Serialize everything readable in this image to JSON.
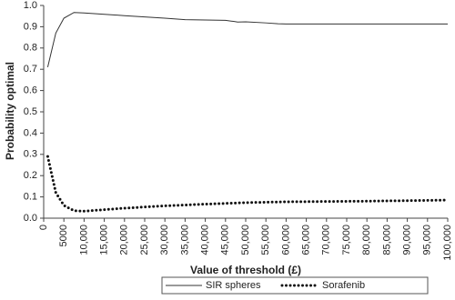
{
  "chart_data": {
    "type": "line",
    "x_label": "Value of threshold (£)",
    "y_label": "Probability optimal",
    "xlim": [
      0,
      100000
    ],
    "xticks": [
      0,
      5000,
      {
        "value": 10000,
        "label": "10,000"
      },
      {
        "value": 15000,
        "label": "15,000"
      },
      {
        "value": 20000,
        "label": "20,000"
      },
      {
        "value": 25000,
        "label": "25,000"
      },
      {
        "value": 30000,
        "label": "30,000"
      },
      {
        "value": 35000,
        "label": "35,000"
      },
      {
        "value": 40000,
        "label": "40,000"
      },
      {
        "value": 45000,
        "label": "45,000"
      },
      {
        "value": 50000,
        "label": "50,000"
      },
      {
        "value": 55000,
        "label": "55,000"
      },
      {
        "value": 60000,
        "label": "60,000"
      },
      {
        "value": 65000,
        "label": "65,000"
      },
      {
        "value": 70000,
        "label": "70,000"
      },
      {
        "value": 75000,
        "label": "75,000"
      },
      {
        "value": 80000,
        "label": "80,000"
      },
      {
        "value": 85000,
        "label": "85,000"
      },
      {
        "value": 90000,
        "label": "90,000"
      },
      {
        "value": 95000,
        "label": "95,000"
      },
      {
        "value": 100000,
        "label": "100,000"
      }
    ],
    "ylim": [
      0,
      1
    ],
    "yticks": [
      {
        "value": 0,
        "label": "0.0"
      },
      0.1,
      0.2,
      0.3,
      0.4,
      0.5,
      0.6,
      0.7,
      0.8,
      0.9,
      {
        "value": 1,
        "label": "1.0"
      }
    ],
    "series": [
      {
        "name": "SIR spheres",
        "color": "#333333",
        "style": "solid",
        "x": [
          1000,
          3000,
          5000,
          7500,
          10000,
          20000,
          30000,
          35000,
          45000,
          47000,
          48000,
          50000,
          55000,
          58000,
          60000,
          100000
        ],
        "values": [
          0.71,
          0.87,
          0.94,
          0.967,
          0.965,
          0.952,
          0.94,
          0.933,
          0.93,
          0.925,
          0.922,
          0.923,
          0.918,
          0.914,
          0.913,
          0.913
        ]
      },
      {
        "name": "Sorafenib",
        "color": "#111111",
        "style": "dotted",
        "x": [
          1000,
          3000,
          5000,
          7500,
          10000,
          15000,
          20000,
          30000,
          40000,
          50000,
          60000,
          80000,
          100000
        ],
        "values": [
          0.29,
          0.12,
          0.06,
          0.035,
          0.033,
          0.04,
          0.047,
          0.058,
          0.066,
          0.073,
          0.077,
          0.08,
          0.085
        ]
      }
    ]
  }
}
